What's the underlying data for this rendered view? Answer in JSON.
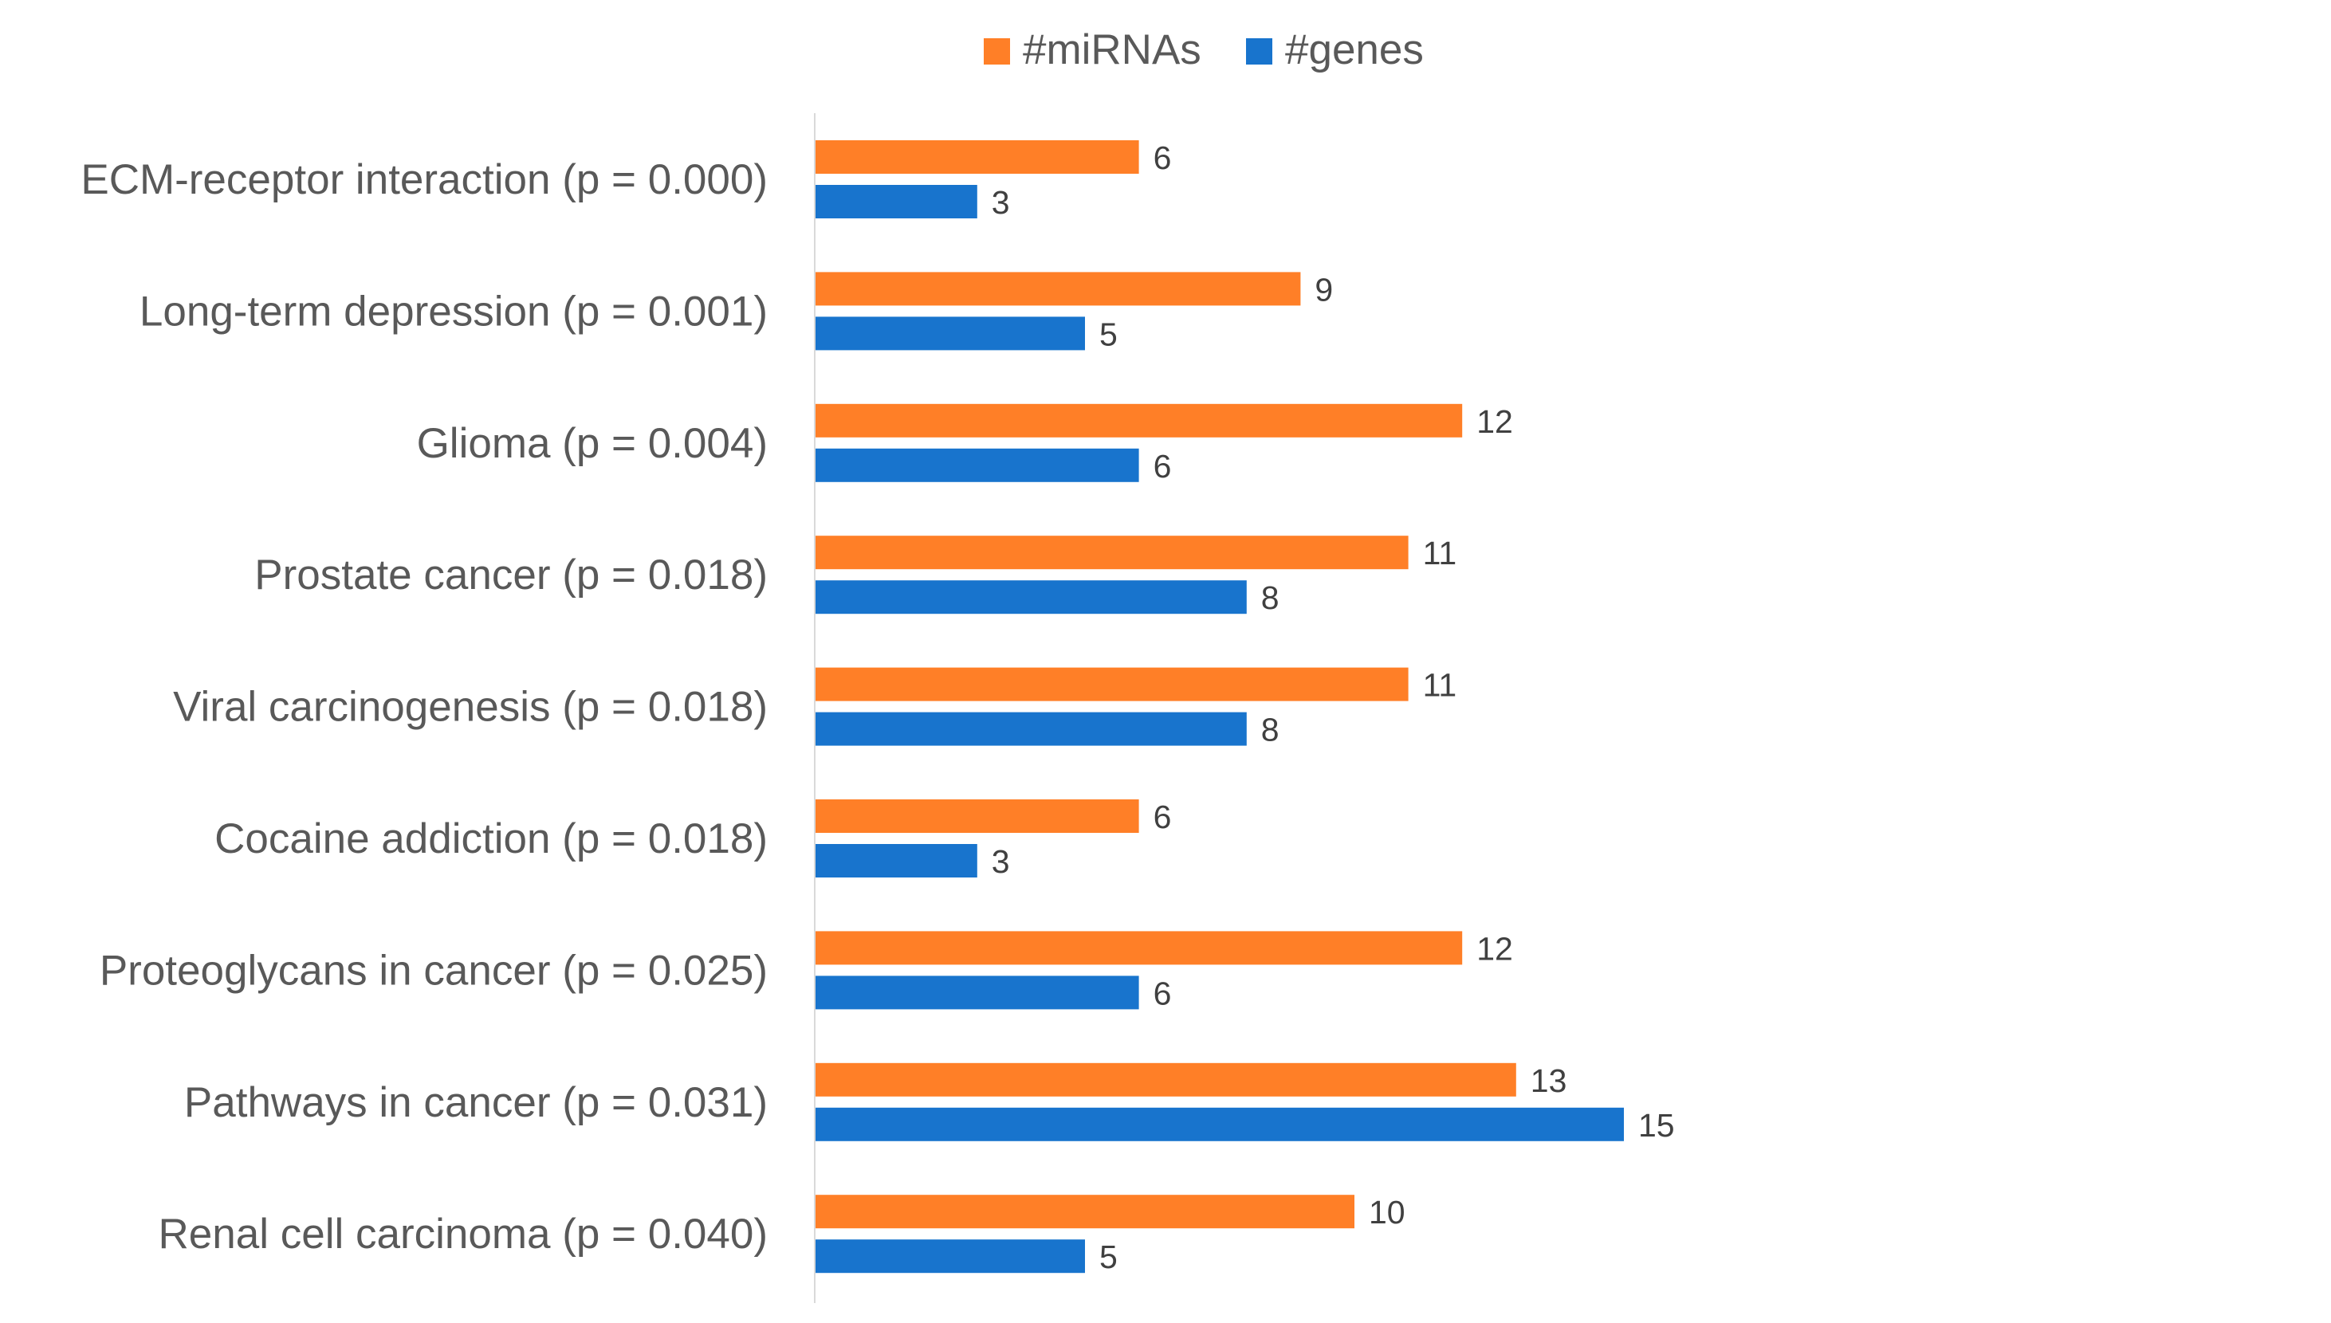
{
  "chart_data": {
    "type": "bar",
    "orientation": "horizontal",
    "title": "",
    "xlabel": "",
    "ylabel": "",
    "xlim": [
      0,
      15
    ],
    "grid": false,
    "legend_position": "top",
    "categories": [
      "ECM-receptor interaction (p = 0.000)",
      "Long-term depression (p = 0.001)",
      "Glioma (p = 0.004)",
      "Prostate cancer (p = 0.018)",
      "Viral carcinogenesis (p = 0.018)",
      "Cocaine addiction (p = 0.018)",
      "Proteoglycans in cancer (p = 0.025)",
      "Pathways in cancer (p = 0.031)",
      "Renal cell carcinoma (p = 0.040)"
    ],
    "series": [
      {
        "name": "#miRNAs",
        "color": "#FF7F27",
        "values": [
          6,
          9,
          12,
          11,
          11,
          6,
          12,
          13,
          10
        ]
      },
      {
        "name": "#genes",
        "color": "#1874CD",
        "values": [
          3,
          5,
          6,
          8,
          8,
          3,
          6,
          15,
          5
        ]
      }
    ],
    "axis_color": "#D9D9D9"
  }
}
